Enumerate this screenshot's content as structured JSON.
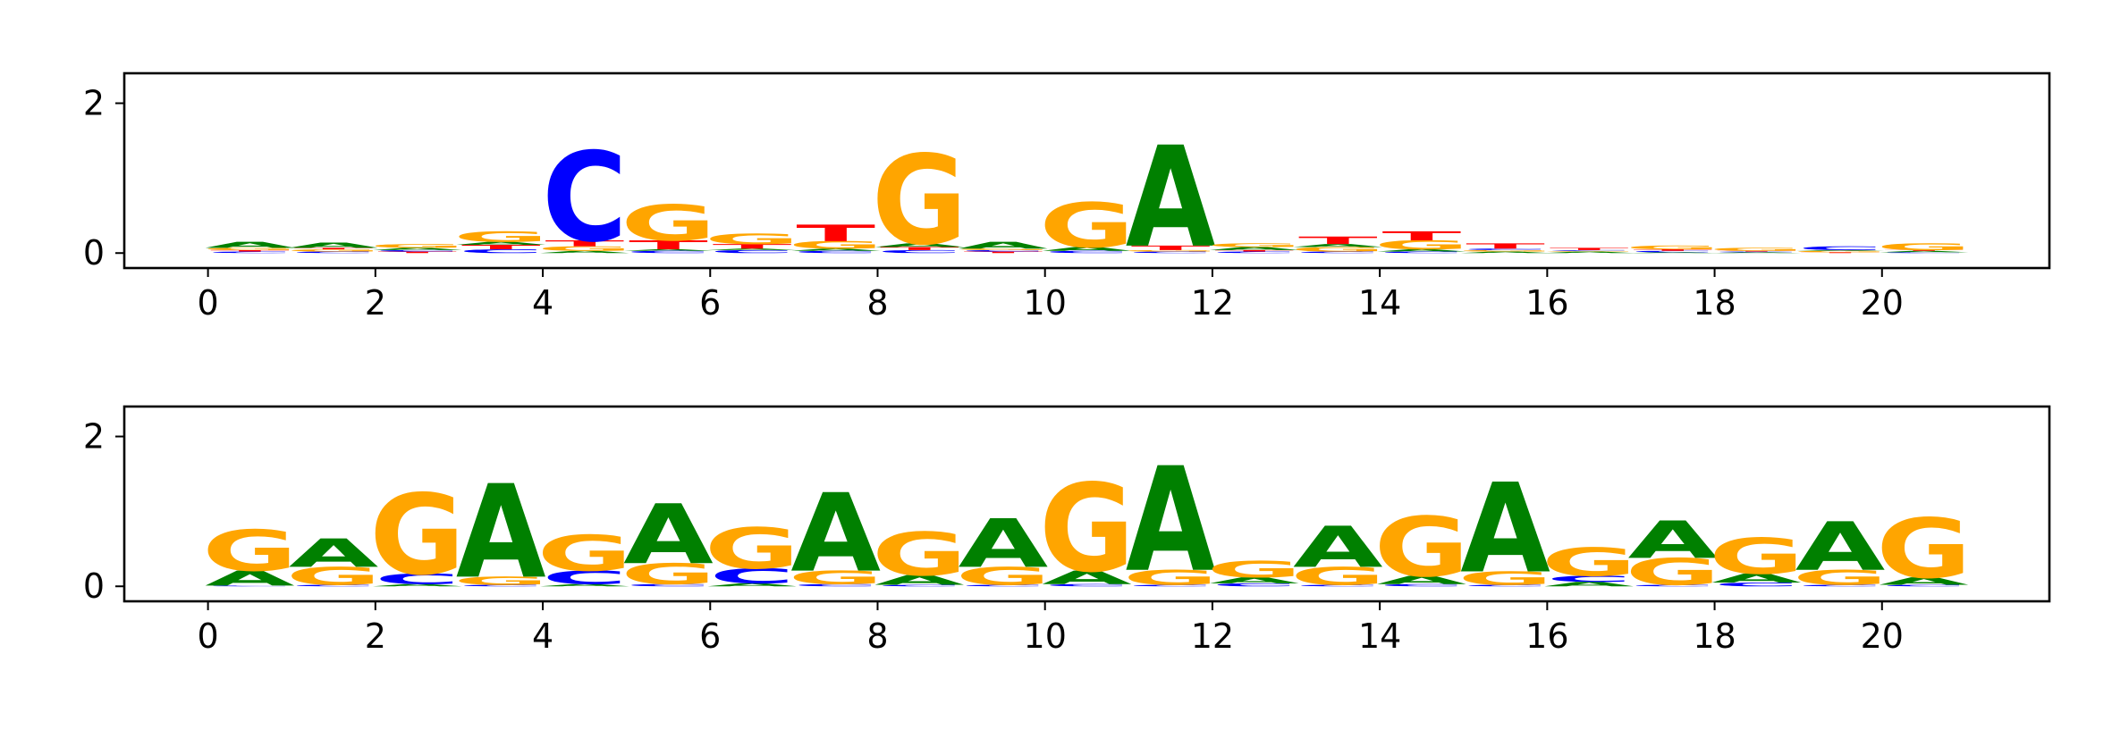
{
  "colors": {
    "A": "#008000",
    "C": "#0000ff",
    "G": "#ffa500",
    "T": "#ff0000"
  },
  "chart_data": [
    {
      "type": "sequence-logo",
      "title": "",
      "xlabel": "",
      "ylabel": "",
      "xlim": [
        -1,
        22
      ],
      "ylim": [
        -0.2,
        2.4
      ],
      "xticks": [
        "0",
        "2",
        "4",
        "6",
        "8",
        "10",
        "12",
        "14",
        "16",
        "18",
        "20"
      ],
      "yticks": [
        "0",
        "2"
      ],
      "positions": [
        {
          "pos": 0,
          "stack": [
            [
              "C",
              0.02
            ],
            [
              "T",
              0.02
            ],
            [
              "G",
              0.03
            ],
            [
              "A",
              0.08
            ]
          ]
        },
        {
          "pos": 1,
          "stack": [
            [
              "C",
              0.02
            ],
            [
              "G",
              0.03
            ],
            [
              "T",
              0.02
            ],
            [
              "A",
              0.07
            ]
          ]
        },
        {
          "pos": 2,
          "stack": [
            [
              "T",
              0.02
            ],
            [
              "C",
              0.02
            ],
            [
              "A",
              0.03
            ],
            [
              "G",
              0.05
            ]
          ]
        },
        {
          "pos": 3,
          "stack": [
            [
              "C",
              0.05
            ],
            [
              "T",
              0.06
            ],
            [
              "A",
              0.04
            ],
            [
              "G",
              0.14
            ]
          ]
        },
        {
          "pos": 4,
          "stack": [
            [
              "A",
              0.03
            ],
            [
              "G",
              0.06
            ],
            [
              "T",
              0.08
            ],
            [
              "C",
              1.2
            ]
          ]
        },
        {
          "pos": 5,
          "stack": [
            [
              "C",
              0.03
            ],
            [
              "A",
              0.02
            ],
            [
              "T",
              0.12
            ],
            [
              "G",
              0.48
            ]
          ]
        },
        {
          "pos": 6,
          "stack": [
            [
              "C",
              0.04
            ],
            [
              "A",
              0.02
            ],
            [
              "T",
              0.06
            ],
            [
              "G",
              0.14
            ]
          ]
        },
        {
          "pos": 7,
          "stack": [
            [
              "C",
              0.03
            ],
            [
              "A",
              0.03
            ],
            [
              "G",
              0.1
            ],
            [
              "T",
              0.22
            ]
          ]
        },
        {
          "pos": 8,
          "stack": [
            [
              "C",
              0.04
            ],
            [
              "T",
              0.04
            ],
            [
              "A",
              0.05
            ],
            [
              "G",
              1.2
            ]
          ]
        },
        {
          "pos": 9,
          "stack": [
            [
              "T",
              0.02
            ],
            [
              "C",
              0.02
            ],
            [
              "G",
              0.02
            ],
            [
              "A",
              0.09
            ]
          ]
        },
        {
          "pos": 10,
          "stack": [
            [
              "C",
              0.03
            ],
            [
              "A",
              0.05
            ],
            [
              "G",
              0.6
            ]
          ]
        },
        {
          "pos": 11,
          "stack": [
            [
              "C",
              0.02
            ],
            [
              "G",
              0.02
            ],
            [
              "T",
              0.06
            ],
            [
              "A",
              1.35
            ]
          ]
        },
        {
          "pos": 12,
          "stack": [
            [
              "C",
              0.02
            ],
            [
              "T",
              0.02
            ],
            [
              "A",
              0.04
            ],
            [
              "G",
              0.05
            ]
          ]
        },
        {
          "pos": 13,
          "stack": [
            [
              "C",
              0.02
            ],
            [
              "G",
              0.06
            ],
            [
              "A",
              0.04
            ],
            [
              "T",
              0.1
            ]
          ]
        },
        {
          "pos": 14,
          "stack": [
            [
              "C",
              0.02
            ],
            [
              "A",
              0.03
            ],
            [
              "G",
              0.12
            ],
            [
              "T",
              0.12
            ]
          ]
        },
        {
          "pos": 15,
          "stack": [
            [
              "A",
              0.02
            ],
            [
              "G",
              0.02
            ],
            [
              "C",
              0.02
            ],
            [
              "T",
              0.07
            ]
          ]
        },
        {
          "pos": 16,
          "stack": [
            [
              "A",
              0.02
            ],
            [
              "G",
              0.01
            ],
            [
              "C",
              0.01
            ],
            [
              "T",
              0.03
            ]
          ]
        },
        {
          "pos": 17,
          "stack": [
            [
              "A",
              0.01
            ],
            [
              "C",
              0.02
            ],
            [
              "T",
              0.02
            ],
            [
              "G",
              0.05
            ]
          ]
        },
        {
          "pos": 18,
          "stack": [
            [
              "A",
              0.01
            ],
            [
              "C",
              0.01
            ],
            [
              "T",
              0.01
            ],
            [
              "G",
              0.04
            ]
          ]
        },
        {
          "pos": 19,
          "stack": [
            [
              "T",
              0.01
            ],
            [
              "G",
              0.02
            ],
            [
              "A",
              0.01
            ],
            [
              "C",
              0.05
            ]
          ]
        },
        {
          "pos": 20,
          "stack": [
            [
              "C",
              0.01
            ],
            [
              "A",
              0.02
            ],
            [
              "T",
              0.01
            ],
            [
              "G",
              0.09
            ]
          ]
        }
      ]
    },
    {
      "type": "sequence-logo",
      "title": "",
      "xlabel": "",
      "ylabel": "",
      "xlim": [
        -1,
        22
      ],
      "ylim": [
        -0.2,
        2.4
      ],
      "xticks": [
        "0",
        "2",
        "4",
        "6",
        "8",
        "10",
        "12",
        "14",
        "16",
        "18",
        "20"
      ],
      "yticks": [
        "0",
        "2"
      ],
      "positions": [
        {
          "pos": 0,
          "stack": [
            [
              "C",
              0.01
            ],
            [
              "A",
              0.2
            ],
            [
              "G",
              0.55
            ]
          ]
        },
        {
          "pos": 1,
          "stack": [
            [
              "C",
              0.02
            ],
            [
              "G",
              0.24
            ],
            [
              "A",
              0.38
            ]
          ]
        },
        {
          "pos": 2,
          "stack": [
            [
              "A",
              0.03
            ],
            [
              "C",
              0.14
            ],
            [
              "G",
              1.08
            ]
          ]
        },
        {
          "pos": 3,
          "stack": [
            [
              "C",
              0.02
            ],
            [
              "G",
              0.11
            ],
            [
              "A",
              1.25
            ]
          ]
        },
        {
          "pos": 4,
          "stack": [
            [
              "A",
              0.03
            ],
            [
              "C",
              0.18
            ],
            [
              "G",
              0.48
            ]
          ]
        },
        {
          "pos": 5,
          "stack": [
            [
              "C",
              0.03
            ],
            [
              "G",
              0.28
            ],
            [
              "A",
              0.8
            ]
          ]
        },
        {
          "pos": 6,
          "stack": [
            [
              "A",
              0.04
            ],
            [
              "C",
              0.2
            ],
            [
              "G",
              0.55
            ]
          ]
        },
        {
          "pos": 7,
          "stack": [
            [
              "C",
              0.03
            ],
            [
              "G",
              0.18
            ],
            [
              "A",
              1.05
            ]
          ]
        },
        {
          "pos": 8,
          "stack": [
            [
              "C",
              0.02
            ],
            [
              "A",
              0.13
            ],
            [
              "G",
              0.58
            ]
          ]
        },
        {
          "pos": 9,
          "stack": [
            [
              "C",
              0.02
            ],
            [
              "G",
              0.24
            ],
            [
              "A",
              0.65
            ]
          ]
        },
        {
          "pos": 10,
          "stack": [
            [
              "C",
              0.03
            ],
            [
              "A",
              0.18
            ],
            [
              "G",
              1.18
            ]
          ]
        },
        {
          "pos": 11,
          "stack": [
            [
              "C",
              0.02
            ],
            [
              "G",
              0.2
            ],
            [
              "A",
              1.4
            ]
          ]
        },
        {
          "pos": 12,
          "stack": [
            [
              "C",
              0.04
            ],
            [
              "A",
              0.08
            ],
            [
              "G",
              0.22
            ]
          ]
        },
        {
          "pos": 13,
          "stack": [
            [
              "C",
              0.02
            ],
            [
              "G",
              0.24
            ],
            [
              "A",
              0.55
            ]
          ]
        },
        {
          "pos": 14,
          "stack": [
            [
              "C",
              0.03
            ],
            [
              "A",
              0.11
            ],
            [
              "G",
              0.8
            ]
          ]
        },
        {
          "pos": 15,
          "stack": [
            [
              "C",
              0.02
            ],
            [
              "G",
              0.18
            ],
            [
              "A",
              1.2
            ]
          ]
        },
        {
          "pos": 16,
          "stack": [
            [
              "A",
              0.06
            ],
            [
              "C",
              0.08
            ],
            [
              "G",
              0.38
            ]
          ]
        },
        {
          "pos": 17,
          "stack": [
            [
              "C",
              0.02
            ],
            [
              "G",
              0.36
            ],
            [
              "A",
              0.5
            ]
          ]
        },
        {
          "pos": 18,
          "stack": [
            [
              "C",
              0.05
            ],
            [
              "A",
              0.12
            ],
            [
              "G",
              0.48
            ]
          ]
        },
        {
          "pos": 19,
          "stack": [
            [
              "C",
              0.02
            ],
            [
              "G",
              0.2
            ],
            [
              "A",
              0.65
            ]
          ]
        },
        {
          "pos": 20,
          "stack": [
            [
              "C",
              0.02
            ],
            [
              "A",
              0.1
            ],
            [
              "G",
              0.8
            ]
          ]
        }
      ]
    }
  ]
}
